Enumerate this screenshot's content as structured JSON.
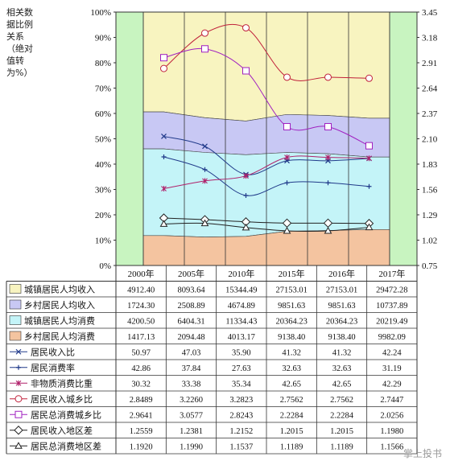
{
  "chart_data": {
    "type": "table",
    "ylabel_left": "相关数据比例关系（绝对值转为%）",
    "left_axis": {
      "ylim": [
        0,
        100
      ],
      "ticks": [
        "0%",
        "10%",
        "20%",
        "30%",
        "40%",
        "50%",
        "60%",
        "70%",
        "80%",
        "90%",
        "100%"
      ]
    },
    "right_axis": {
      "ylim": [
        0.75,
        3.45
      ],
      "ticks": [
        "0.75",
        "1.02",
        "1.29",
        "1.56",
        "1.83",
        "2.10",
        "2.37",
        "2.64",
        "2.91",
        "3.18",
        "3.45"
      ]
    },
    "categories": [
      "2000年",
      "2005年",
      "2010年",
      "2015年",
      "2016年",
      "2017年"
    ],
    "stacked_areas": [
      {
        "name": "城镇居民人均收入",
        "color": "#f8f4c0",
        "values": [
          4912.4,
          8093.64,
          15344.49,
          27153.01,
          27153.01,
          29472.28
        ],
        "labels": [
          "4912.40",
          "8093.64",
          "15344.49",
          "27153.01",
          "27153.01",
          "29472.28"
        ],
        "band": [
          [
            60.6,
            100
          ],
          [
            58.3,
            100
          ],
          [
            57.0,
            100
          ],
          [
            59.6,
            100
          ],
          [
            59.2,
            100
          ],
          [
            58.1,
            100
          ]
        ]
      },
      {
        "name": "乡村居民人均收入",
        "color": "#c8c8f4",
        "values": [
          1724.3,
          2508.89,
          4674.89,
          9851.63,
          9851.63,
          10737.89
        ],
        "labels": [
          "1724.30",
          "2508.89",
          "4674.89",
          "9851.63",
          "9851.63",
          "10737.89"
        ],
        "band": [
          [
            46.0,
            60.6
          ],
          [
            44.6,
            58.3
          ],
          [
            43.7,
            57.0
          ],
          [
            44.6,
            59.6
          ],
          [
            44.1,
            59.2
          ],
          [
            42.8,
            58.1
          ]
        ]
      },
      {
        "name": "城镇居民人均消费",
        "color": "#c4f4f8",
        "values": [
          4200.5,
          6404.31,
          11334.43,
          20364.23,
          20364.23,
          20219.49
        ],
        "labels": [
          "4200.50",
          "6404.31",
          "11334.43",
          "20364.23",
          "20364.23",
          "20219.49"
        ],
        "band": [
          [
            11.8,
            46.0
          ],
          [
            11.2,
            44.6
          ],
          [
            11.5,
            43.7
          ],
          [
            13.5,
            44.6
          ],
          [
            13.8,
            44.1
          ],
          [
            14.2,
            42.8
          ]
        ]
      },
      {
        "name": "乡村居民人均消费",
        "color": "#f4c4a0",
        "values": [
          1417.13,
          2094.48,
          4013.17,
          9138.4,
          9138.4,
          9982.09
        ],
        "labels": [
          "1417.13",
          "2094.48",
          "4013.17",
          "9138.40",
          "9138.40",
          "9982.09"
        ],
        "band": [
          [
            0,
            11.8
          ],
          [
            0,
            11.2
          ],
          [
            0,
            11.5
          ],
          [
            0,
            13.5
          ],
          [
            0,
            13.8
          ],
          [
            0,
            14.2
          ]
        ]
      }
    ],
    "percent_lines": [
      {
        "name": "居民收入比",
        "marker": "x",
        "color": "#203a8a",
        "axis": "left",
        "values": [
          50.97,
          47.03,
          35.9,
          41.32,
          41.32,
          42.24
        ],
        "labels": [
          "50.97",
          "47.03",
          "35.90",
          "41.32",
          "41.32",
          "42.24"
        ]
      },
      {
        "name": "居民消费率",
        "marker": "+",
        "color": "#203a8a",
        "axis": "left",
        "values": [
          42.86,
          37.84,
          27.63,
          32.63,
          32.63,
          31.19
        ],
        "labels": [
          "42.86",
          "37.84",
          "27.63",
          "32.63",
          "32.63",
          "31.19"
        ]
      },
      {
        "name": "非物质消费比重",
        "marker": "star",
        "color": "#b0206a",
        "axis": "left",
        "values": [
          30.32,
          33.38,
          35.34,
          42.65,
          42.65,
          42.29
        ],
        "labels": [
          "30.32",
          "33.38",
          "35.34",
          "42.65",
          "42.65",
          "42.29"
        ]
      }
    ],
    "ratio_lines": [
      {
        "name": "居民收入城乡比",
        "marker": "circle",
        "color": "#c0203a",
        "axis": "right",
        "values": [
          2.8489,
          3.226,
          3.2823,
          2.7562,
          2.7562,
          2.7447
        ],
        "labels": [
          "2.8489",
          "3.2260",
          "3.2823",
          "2.7562",
          "2.7562",
          "2.7447"
        ]
      },
      {
        "name": "居民总消费城乡比",
        "marker": "square",
        "color": "#a020c0",
        "axis": "right",
        "values": [
          2.9641,
          3.0577,
          2.8243,
          2.2284,
          2.2284,
          2.0256
        ],
        "labels": [
          "2.9641",
          "3.0577",
          "2.8243",
          "2.2284",
          "2.2284",
          "2.0256"
        ]
      },
      {
        "name": "居民收入地区差",
        "marker": "diamond",
        "color": "#222222",
        "axis": "right",
        "values": [
          1.2559,
          1.2381,
          1.2152,
          1.2015,
          1.2015,
          1.198
        ],
        "labels": [
          "1.2559",
          "1.2381",
          "1.2152",
          "1.2015",
          "1.2015",
          "1.1980"
        ]
      },
      {
        "name": "居民总消费地区差",
        "marker": "triangle",
        "color": "#222222",
        "axis": "right",
        "values": [
          1.192,
          1.199,
          1.1537,
          1.1189,
          1.1189,
          1.1566
        ],
        "labels": [
          "1.1920",
          "1.1990",
          "1.1537",
          "1.1189",
          "1.1189",
          "1.1566"
        ]
      }
    ],
    "colors": {
      "left_band": "#c8f4c0",
      "right_band": "#c8f4c0",
      "grid": "#555555",
      "border": "#333333"
    },
    "watermark": "掌上投书"
  }
}
